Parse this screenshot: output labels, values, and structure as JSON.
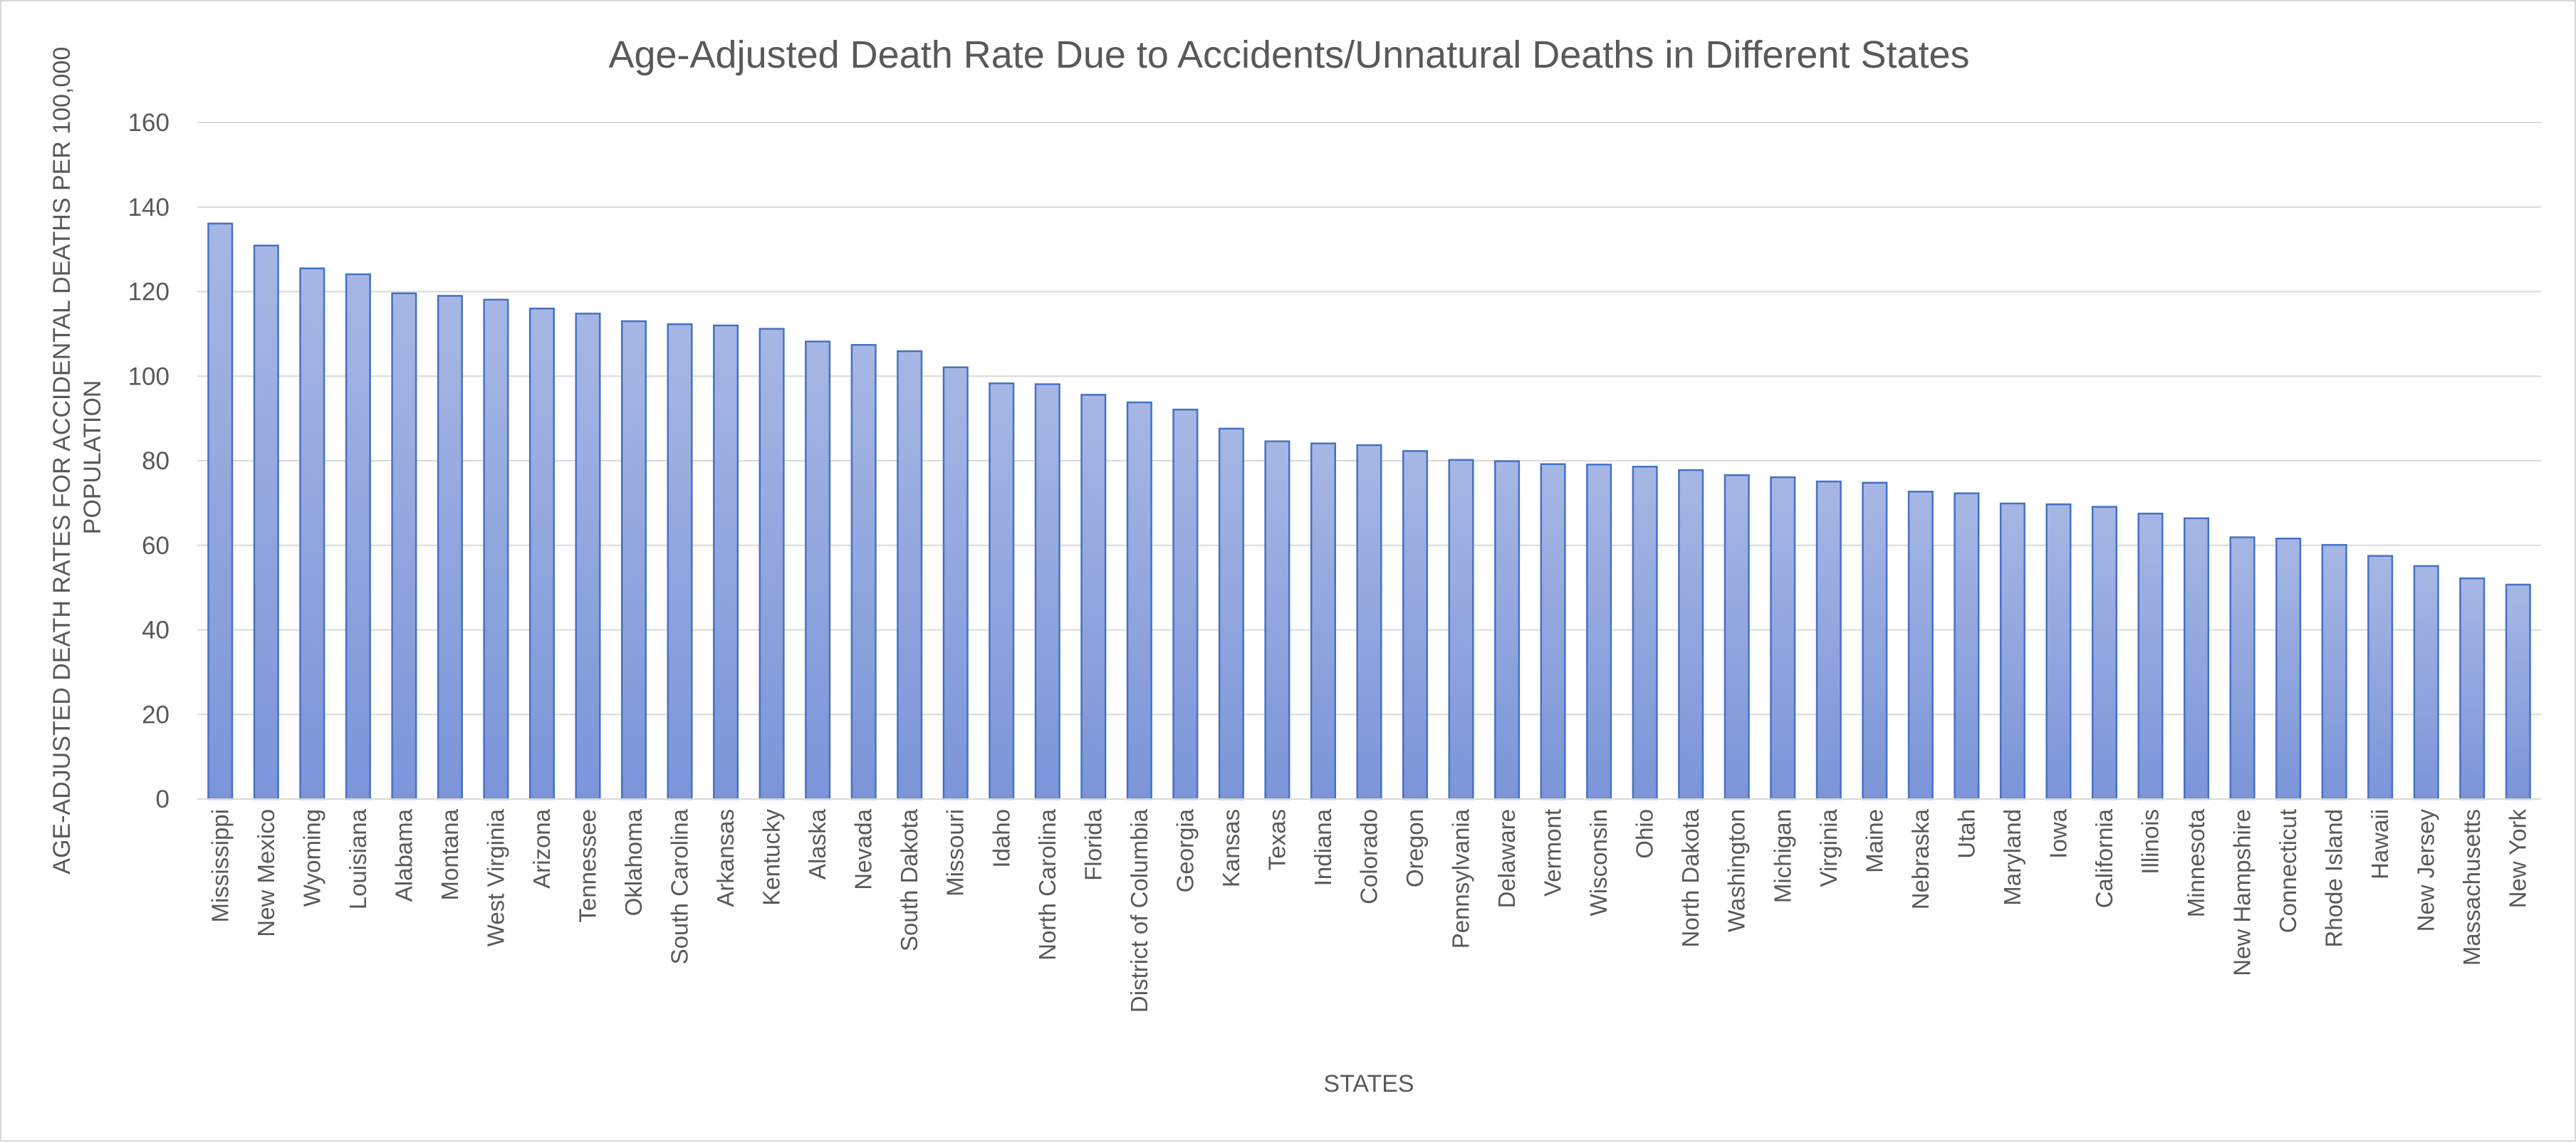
{
  "chart_data": {
    "type": "bar",
    "title": "Age-Adjusted Death Rate Due to Accidents/Unnatural Deaths in Different States",
    "xlabel": "STATES",
    "ylabel": "AGE-ADJUSTED DEATH RATES FOR ACCIDENTAL DEATHS PER 100,000 POPULATION",
    "ylim": [
      0,
      160
    ],
    "yticks": [
      "0",
      "20",
      "40",
      "60",
      "80",
      "100",
      "120",
      "140",
      "160"
    ],
    "grid": true,
    "legend": "none",
    "colors": {
      "bar_fill_top": "#a7b7e4",
      "bar_fill_bottom": "#7b95d9",
      "bar_border": "#4472c4",
      "gridline": "#d9d9d9",
      "text": "#595959"
    },
    "categories": [
      "Mississippi",
      "New Mexico",
      "Wyoming",
      "Louisiana",
      "Alabama",
      "Montana",
      "West Virginia",
      "Arizona",
      "Tennessee",
      "Oklahoma",
      "South Carolina",
      "Arkansas",
      "Kentucky",
      "Alaska",
      "Nevada",
      "South Dakota",
      "Missouri",
      "Idaho",
      "North Carolina",
      "Florida",
      "District of Columbia",
      "Georgia",
      "Kansas",
      "Texas",
      "Indiana",
      "Colorado",
      "Oregon",
      "Pennsylvania",
      "Delaware",
      "Vermont",
      "Wisconsin",
      "Ohio",
      "North Dakota",
      "Washington",
      "Michigan",
      "Virginia",
      "Maine",
      "Nebraska",
      "Utah",
      "Maryland",
      "Iowa",
      "California",
      "Illinois",
      "Minnesota",
      "New Hampshire",
      "Connecticut",
      "Rhode Island",
      "Hawaii",
      "New Jersey",
      "Massachusetts",
      "New York"
    ],
    "values": [
      136.1,
      130.9,
      125.5,
      124.1,
      119.6,
      119.0,
      118.1,
      116.0,
      114.8,
      113.0,
      112.3,
      112.0,
      111.2,
      108.2,
      107.4,
      105.9,
      102.1,
      98.3,
      98.1,
      95.6,
      93.8,
      92.1,
      87.6,
      84.6,
      84.1,
      83.7,
      82.3,
      80.2,
      79.9,
      79.2,
      79.1,
      78.6,
      77.8,
      76.6,
      76.1,
      75.1,
      74.8,
      72.7,
      72.3,
      69.9,
      69.7,
      69.1,
      67.5,
      66.4,
      61.9,
      61.6,
      60.1,
      57.5,
      55.1,
      52.2,
      50.7
    ]
  }
}
